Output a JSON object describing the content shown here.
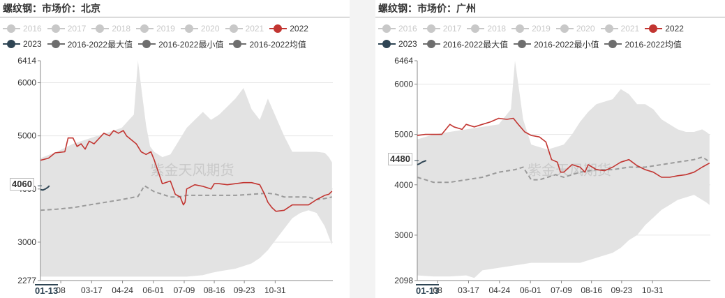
{
  "chart_data": [
    {
      "type": "line",
      "title": "螺纹钢：市场价：北京",
      "watermark": "紫金天风期货",
      "current_value_label": "4060",
      "start_date_label": "01-13",
      "x_ticks": [
        "08",
        "03-17",
        "04-24",
        "06-01",
        "07-09",
        "08-16",
        "09-23",
        "10-31"
      ],
      "y_ticks": [
        "2277",
        "3000",
        "4000",
        "5000",
        "6000",
        "6414"
      ],
      "ylim": [
        2277,
        6414
      ],
      "x_range_days": [
        0,
        360
      ],
      "x_tick_days": [
        25,
        63,
        101,
        139,
        177,
        214,
        251,
        289
      ],
      "legend": [
        {
          "name": "2016",
          "visible": false,
          "color": "#c8c8c8"
        },
        {
          "name": "2017",
          "visible": false,
          "color": "#c8c8c8"
        },
        {
          "name": "2018",
          "visible": false,
          "color": "#c8c8c8"
        },
        {
          "name": "2019",
          "visible": false,
          "color": "#c8c8c8"
        },
        {
          "name": "2020",
          "visible": false,
          "color": "#c8c8c8"
        },
        {
          "name": "2021",
          "visible": false,
          "color": "#c8c8c8"
        },
        {
          "name": "2022",
          "visible": true,
          "color": "#c23531"
        },
        {
          "name": "2023",
          "visible": true,
          "color": "#2f4554"
        },
        {
          "name": "2016-2022最大值",
          "visible": true,
          "color": "#6e6e6e"
        },
        {
          "name": "2016-2022最小值",
          "visible": true,
          "color": "#6e6e6e"
        },
        {
          "name": "2016-2022均值",
          "visible": true,
          "color": "#6e6e6e"
        }
      ],
      "series": [
        {
          "name": "2022",
          "color": "#c23531",
          "x": [
            0,
            10,
            18,
            30,
            34,
            40,
            45,
            50,
            55,
            60,
            66,
            72,
            78,
            85,
            90,
            96,
            102,
            106,
            110,
            118,
            124,
            130,
            136,
            140,
            150,
            160,
            166,
            172,
            176,
            178,
            180,
            190,
            200,
            210,
            214,
            220,
            230,
            240,
            250,
            260,
            270,
            276,
            280,
            285,
            290,
            300,
            310,
            320,
            330,
            340,
            350,
            355,
            359
          ],
          "y": [
            4540,
            4580,
            4680,
            4700,
            4960,
            4960,
            4800,
            4850,
            4750,
            4900,
            4850,
            4950,
            5050,
            5000,
            5100,
            5050,
            5100,
            5000,
            4950,
            4850,
            4700,
            4650,
            4700,
            4550,
            4100,
            4150,
            3900,
            3850,
            3700,
            3750,
            4000,
            4080,
            4050,
            4000,
            4100,
            4100,
            4080,
            4100,
            4120,
            4120,
            4080,
            3900,
            3750,
            3650,
            3580,
            3600,
            3700,
            3700,
            3700,
            3800,
            3880,
            3900,
            3960
          ]
        },
        {
          "name": "2023",
          "color": "#2f4554",
          "x": [
            0,
            3,
            6,
            9,
            11
          ],
          "y": [
            3990,
            3980,
            4000,
            4030,
            4060
          ]
        },
        {
          "name": "2016-2022最大值",
          "x": [
            0,
            20,
            40,
            60,
            80,
            100,
            115,
            120,
            125,
            130,
            135,
            140,
            150,
            160,
            170,
            180,
            190,
            200,
            210,
            220,
            240,
            250,
            260,
            270,
            280,
            290,
            300,
            310,
            320,
            330,
            340,
            350,
            355,
            359
          ],
          "y": [
            4580,
            4700,
            4850,
            4950,
            5050,
            5150,
            5400,
            6414,
            5800,
            5200,
            4800,
            4700,
            4600,
            4650,
            4900,
            5150,
            5300,
            5450,
            5300,
            5400,
            5700,
            5900,
            5500,
            5300,
            5700,
            5350,
            5000,
            4700,
            4700,
            4700,
            4700,
            4680,
            4600,
            4500
          ]
        },
        {
          "name": "2016-2022最小值",
          "x": [
            0,
            20,
            40,
            60,
            80,
            100,
            120,
            140,
            160,
            180,
            200,
            210,
            220,
            240,
            250,
            260,
            270,
            280,
            290,
            300,
            310,
            320,
            330,
            340,
            350,
            355,
            359
          ],
          "y": [
            2350,
            2350,
            2350,
            2350,
            2350,
            2350,
            2350,
            2350,
            2350,
            2350,
            2380,
            2420,
            2450,
            2500,
            2550,
            2600,
            2700,
            2850,
            3050,
            3250,
            3450,
            3550,
            3600,
            3550,
            3300,
            3100,
            2950
          ]
        },
        {
          "name": "2016-2022均值",
          "x": [
            0,
            20,
            40,
            60,
            80,
            100,
            120,
            128,
            140,
            150,
            160,
            170,
            180,
            190,
            200,
            210,
            220,
            240,
            260,
            280,
            290,
            300,
            310,
            320,
            330,
            340,
            350,
            359
          ],
          "y": [
            3600,
            3620,
            3650,
            3700,
            3750,
            3800,
            3860,
            4060,
            3950,
            3900,
            3850,
            3850,
            3880,
            3880,
            3880,
            3880,
            3880,
            3880,
            3900,
            3920,
            3900,
            3850,
            3850,
            3850,
            3850,
            3800,
            3820,
            3850
          ]
        }
      ]
    },
    {
      "type": "line",
      "title": "螺纹钢：市场价：广州",
      "watermark": "紫金天风期货",
      "current_value_label": "4480",
      "start_date_label": "01-13",
      "x_ticks": [
        "08",
        "03-17",
        "04-24",
        "06-01",
        "07-09",
        "08-16",
        "09-23",
        "10-31"
      ],
      "y_ticks": [
        "2098",
        "3000",
        "4000",
        "5000",
        "6000",
        "6464"
      ],
      "ylim": [
        2098,
        6464
      ],
      "x_range_days": [
        0,
        360
      ],
      "x_tick_days": [
        25,
        63,
        101,
        139,
        177,
        214,
        251,
        289
      ],
      "legend": [
        {
          "name": "2016",
          "visible": false,
          "color": "#c8c8c8"
        },
        {
          "name": "2017",
          "visible": false,
          "color": "#c8c8c8"
        },
        {
          "name": "2018",
          "visible": false,
          "color": "#c8c8c8"
        },
        {
          "name": "2019",
          "visible": false,
          "color": "#c8c8c8"
        },
        {
          "name": "2020",
          "visible": false,
          "color": "#c8c8c8"
        },
        {
          "name": "2021",
          "visible": false,
          "color": "#c8c8c8"
        },
        {
          "name": "2022",
          "visible": true,
          "color": "#c23531"
        },
        {
          "name": "2023",
          "visible": true,
          "color": "#2f4554"
        },
        {
          "name": "2016-2022最大值",
          "visible": true,
          "color": "#6e6e6e"
        },
        {
          "name": "2016-2022最小值",
          "visible": true,
          "color": "#6e6e6e"
        },
        {
          "name": "2016-2022均值",
          "visible": true,
          "color": "#6e6e6e"
        }
      ],
      "series": [
        {
          "name": "2022",
          "color": "#c23531",
          "x": [
            0,
            10,
            16,
            30,
            40,
            45,
            55,
            60,
            70,
            80,
            90,
            100,
            110,
            118,
            124,
            132,
            140,
            150,
            158,
            165,
            172,
            176,
            180,
            190,
            200,
            206,
            210,
            220,
            230,
            240,
            250,
            260,
            270,
            280,
            290,
            300,
            310,
            320,
            330,
            340,
            350,
            359
          ],
          "y": [
            4980,
            5000,
            5000,
            5000,
            5200,
            5150,
            5100,
            5200,
            5150,
            5200,
            5250,
            5320,
            5300,
            5320,
            5200,
            5050,
            4980,
            4950,
            4850,
            4500,
            4450,
            4250,
            4250,
            4400,
            4350,
            4250,
            4400,
            4300,
            4280,
            4350,
            4450,
            4500,
            4380,
            4300,
            4250,
            4150,
            4150,
            4180,
            4200,
            4250,
            4350,
            4430
          ]
        },
        {
          "name": "2023",
          "color": "#2f4554",
          "x": [
            0,
            3,
            6,
            9,
            11
          ],
          "y": [
            4400,
            4420,
            4450,
            4470,
            4480
          ]
        },
        {
          "name": "2016-2022最大值",
          "x": [
            0,
            20,
            40,
            60,
            80,
            100,
            115,
            120,
            125,
            130,
            140,
            150,
            160,
            170,
            180,
            190,
            200,
            210,
            220,
            240,
            250,
            260,
            270,
            280,
            290,
            300,
            310,
            320,
            330,
            340,
            350,
            355,
            359
          ],
          "y": [
            4900,
            5000,
            5050,
            5100,
            5150,
            5200,
            5500,
            6464,
            5900,
            5300,
            4800,
            4750,
            4700,
            4750,
            4800,
            5000,
            5250,
            5450,
            5600,
            5700,
            5900,
            5800,
            5600,
            5600,
            5500,
            5300,
            5200,
            5100,
            5050,
            5050,
            5100,
            5050,
            5000
          ]
        },
        {
          "name": "2016-2022最小值",
          "x": [
            0,
            20,
            40,
            60,
            70,
            80,
            100,
            120,
            140,
            160,
            180,
            200,
            210,
            220,
            240,
            250,
            260,
            270,
            280,
            290,
            300,
            310,
            320,
            330,
            340,
            350,
            355,
            359
          ],
          "y": [
            2200,
            2180,
            2180,
            2200,
            2150,
            2300,
            2350,
            2400,
            2450,
            2450,
            2450,
            2450,
            2500,
            2550,
            2650,
            2750,
            2900,
            3000,
            3200,
            3350,
            3500,
            3600,
            3700,
            3750,
            3800,
            3700,
            3650,
            3600
          ]
        },
        {
          "name": "2016-2022均值",
          "x": [
            0,
            20,
            40,
            60,
            80,
            100,
            120,
            130,
            140,
            150,
            160,
            170,
            180,
            200,
            220,
            240,
            260,
            280,
            300,
            320,
            340,
            350,
            355,
            359
          ],
          "y": [
            4150,
            4050,
            4050,
            4100,
            4150,
            4250,
            4300,
            4350,
            4100,
            4100,
            4150,
            4200,
            4150,
            4250,
            4300,
            4300,
            4350,
            4350,
            4400,
            4450,
            4500,
            4550,
            4500,
            4450
          ]
        }
      ]
    }
  ]
}
